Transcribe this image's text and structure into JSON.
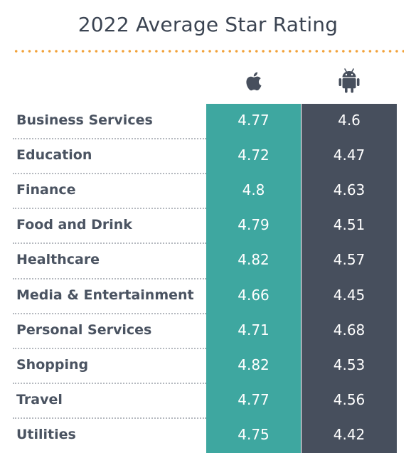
{
  "title": "2022 Average Star Rating",
  "icons": {
    "ios": "apple-icon",
    "android": "android-icon"
  },
  "colors": {
    "ios": "#3ea7a0",
    "android": "#474f5d",
    "dots": "#f2a23a",
    "title": "#3b4452"
  },
  "chart_data": {
    "type": "table",
    "title": "2022 Average Star Rating",
    "categories": [
      "Business Services",
      "Education",
      "Finance",
      "Food and Drink",
      "Healthcare",
      "Media & Entertainment",
      "Personal Services",
      "Shopping",
      "Travel",
      "Utilities"
    ],
    "series": [
      {
        "icon": "apple-icon",
        "color": "#3ea7a0",
        "values": [
          "4.77",
          "4.72",
          "4.8",
          "4.79",
          "4.82",
          "4.66",
          "4.71",
          "4.82",
          "4.77",
          "4.75"
        ]
      },
      {
        "icon": "android-icon",
        "color": "#474f5d",
        "values": [
          "4.6",
          "4.47",
          "4.63",
          "4.51",
          "4.57",
          "4.45",
          "4.68",
          "4.53",
          "4.56",
          "4.42"
        ]
      }
    ]
  }
}
